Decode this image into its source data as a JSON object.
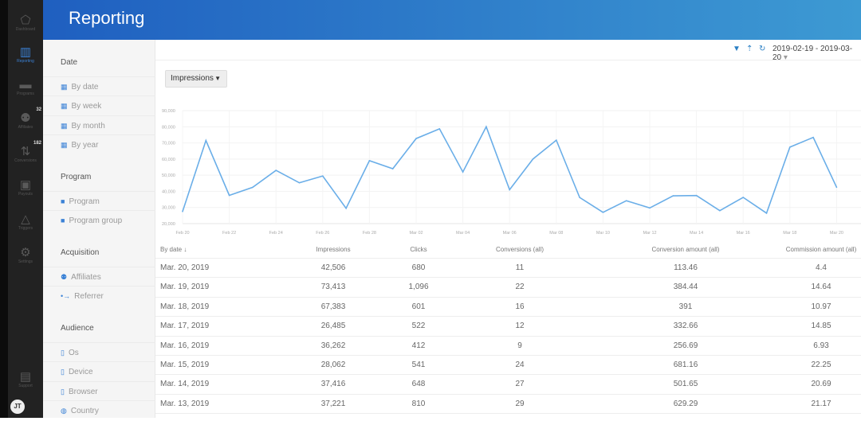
{
  "app": {
    "title": "Reporting"
  },
  "nav": [
    {
      "label": "Dashboard",
      "icon": "dashboard-icon",
      "glyph": "⬠"
    },
    {
      "label": "Reporting",
      "icon": "bar-chart-icon",
      "glyph": "▥",
      "active": true
    },
    {
      "label": "Programs",
      "icon": "briefcase-icon",
      "glyph": "▬"
    },
    {
      "label": "Affiliates",
      "icon": "users-icon",
      "glyph": "⚉",
      "badge": "32"
    },
    {
      "label": "Conversions",
      "icon": "arrows-up-down-icon",
      "glyph": "⇅",
      "badge": "182"
    },
    {
      "label": "Payouts",
      "icon": "wallet-icon",
      "glyph": "▣"
    },
    {
      "label": "Triggers",
      "icon": "triggers-icon",
      "glyph": "△"
    },
    {
      "label": "Settings",
      "icon": "gear-icon",
      "glyph": "⚙"
    }
  ],
  "support": {
    "label": "Support",
    "glyph": "▤"
  },
  "user": {
    "initials": "JT"
  },
  "sidebar": [
    {
      "title": "Date",
      "items": [
        {
          "label": "By date",
          "glyph": "▦"
        },
        {
          "label": "By week",
          "glyph": "▦"
        },
        {
          "label": "By month",
          "glyph": "▦"
        },
        {
          "label": "By year",
          "glyph": "▦"
        }
      ]
    },
    {
      "title": "Program",
      "items": [
        {
          "label": "Program",
          "glyph": "■"
        },
        {
          "label": "Program group",
          "glyph": "■"
        }
      ]
    },
    {
      "title": "Acquisition",
      "items": [
        {
          "label": "Affiliates",
          "glyph": "⚉"
        },
        {
          "label": "Referrer",
          "glyph": "•→"
        }
      ]
    },
    {
      "title": "Audience",
      "items": [
        {
          "label": "Os",
          "glyph": "▯"
        },
        {
          "label": "Device",
          "glyph": "▯"
        },
        {
          "label": "Browser",
          "glyph": "▯"
        },
        {
          "label": "Country",
          "glyph": "◍"
        }
      ]
    }
  ],
  "toolbar": {
    "date_range": "2019-02-19 - 2019-03-20",
    "filter_glyph": "▼",
    "export_glyph": "⇡",
    "refresh_glyph": "↻"
  },
  "metric_select": {
    "value": "Impressions"
  },
  "colors": {
    "accent": "#3b82d6",
    "line": "#6aaee8"
  },
  "chart_data": {
    "type": "line",
    "ylim": [
      20000,
      90000
    ],
    "yticks": [
      "20,000",
      "30,000",
      "40,000",
      "50,000",
      "60,000",
      "70,000",
      "80,000",
      "90,000"
    ],
    "xticks": [
      "Feb 20",
      "Feb 22",
      "Feb 24",
      "Feb 26",
      "Feb 28",
      "Mar 02",
      "Mar 04",
      "Mar 06",
      "Mar 08",
      "Mar 10",
      "Mar 12",
      "Mar 14",
      "Mar 16",
      "Mar 18",
      "Mar 20"
    ],
    "x": [
      "Feb 20",
      "Feb 21",
      "Feb 22",
      "Feb 23",
      "Feb 24",
      "Feb 25",
      "Feb 26",
      "Feb 27",
      "Feb 28",
      "Mar 01",
      "Mar 02",
      "Mar 03",
      "Mar 04",
      "Mar 05",
      "Mar 06",
      "Mar 07",
      "Mar 08",
      "Mar 09",
      "Mar 10",
      "Mar 11",
      "Mar 12",
      "Mar 13",
      "Mar 14",
      "Mar 15",
      "Mar 16",
      "Mar 17",
      "Mar 18",
      "Mar 19",
      "Mar 20"
    ],
    "values": [
      27500,
      71500,
      37500,
      42500,
      53000,
      45300,
      49500,
      29500,
      59000,
      54000,
      72700,
      78700,
      52000,
      80000,
      41000,
      60000,
      71700,
      36200,
      27000,
      34200,
      29700,
      37221,
      37416,
      28062,
      36262,
      26485,
      67383,
      73413,
      42506
    ],
    "grid": true
  },
  "table": {
    "headers": [
      "By date ↓",
      "Impressions",
      "Clicks",
      "Conversions (all)",
      "Conversion amount (all)",
      "Commission amount (all)"
    ],
    "rows": [
      [
        "Mar. 20, 2019",
        "42,506",
        "680",
        "11",
        "113.46",
        "4.4"
      ],
      [
        "Mar. 19, 2019",
        "73,413",
        "1,096",
        "22",
        "384.44",
        "14.64"
      ],
      [
        "Mar. 18, 2019",
        "67,383",
        "601",
        "16",
        "391",
        "10.97"
      ],
      [
        "Mar. 17, 2019",
        "26,485",
        "522",
        "12",
        "332.66",
        "14.85"
      ],
      [
        "Mar. 16, 2019",
        "36,262",
        "412",
        "9",
        "256.69",
        "6.93"
      ],
      [
        "Mar. 15, 2019",
        "28,062",
        "541",
        "24",
        "681.16",
        "22.25"
      ],
      [
        "Mar. 14, 2019",
        "37,416",
        "648",
        "27",
        "501.65",
        "20.69"
      ],
      [
        "Mar. 13, 2019",
        "37,221",
        "810",
        "29",
        "629.29",
        "21.17"
      ]
    ]
  }
}
